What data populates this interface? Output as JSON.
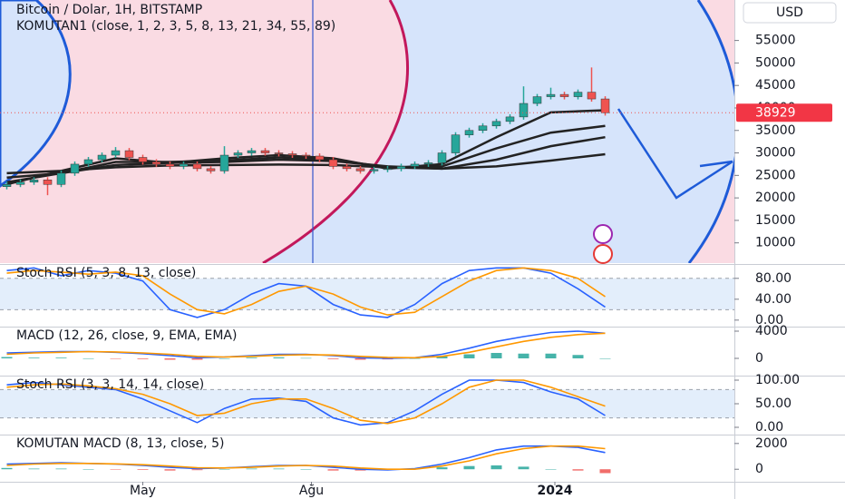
{
  "chart_data": [
    {
      "type": "candlestick",
      "title": "Bitcoin / Dolar, 1H, BITSTAMP",
      "subtitle": "KOMUTAN1 (close, 1, 2, 3, 5, 8, 13, 21, 34, 55, 89)",
      "currency": "USD",
      "last_price": 38929,
      "up_color": "#26a69a",
      "down_color": "#ef5350",
      "x": [
        0,
        1,
        2,
        3,
        4,
        5,
        6,
        7,
        8,
        9,
        10,
        11,
        12,
        13,
        14,
        15,
        16,
        17,
        18,
        19,
        20,
        21,
        22,
        23,
        24,
        25,
        26,
        27,
        28,
        29,
        30,
        31,
        32,
        33,
        34,
        35,
        36,
        37,
        38,
        39,
        40,
        41,
        42,
        43,
        44
      ],
      "open": [
        22500,
        23000,
        23500,
        24000,
        23000,
        25500,
        27500,
        28500,
        29500,
        30500,
        29000,
        28000,
        27500,
        27000,
        27500,
        26500,
        26000,
        29500,
        30000,
        30500,
        30000,
        29800,
        29500,
        29300,
        28500,
        27000,
        26500,
        26000,
        26300,
        26500,
        27000,
        27500,
        27800,
        30000,
        34000,
        35000,
        36000,
        37000,
        38000,
        41000,
        42500,
        43000,
        42500,
        43500,
        42000
      ],
      "high": [
        23600,
        24100,
        24600,
        24600,
        26100,
        28100,
        29100,
        30100,
        31300,
        31100,
        29600,
        28600,
        28100,
        28100,
        28100,
        27100,
        31500,
        30600,
        31100,
        31100,
        30600,
        30400,
        30100,
        29900,
        29100,
        27600,
        27100,
        26900,
        27100,
        27600,
        28100,
        28400,
        30600,
        34600,
        35600,
        36600,
        37600,
        38600,
        44800,
        43100,
        44500,
        43600,
        44100,
        49000,
        42600
      ],
      "low": [
        21900,
        22400,
        22900,
        20600,
        22400,
        24900,
        26900,
        27900,
        28900,
        28400,
        27400,
        26900,
        26400,
        26400,
        25900,
        25400,
        25400,
        28900,
        29400,
        29400,
        29200,
        28900,
        28700,
        27900,
        26400,
        25900,
        25400,
        25400,
        25700,
        25900,
        26400,
        26900,
        27200,
        29400,
        33400,
        34400,
        35400,
        36400,
        37400,
        40400,
        41900,
        41900,
        41900,
        41400,
        38300
      ],
      "close": [
        23000,
        23500,
        24000,
        23000,
        25500,
        27500,
        28500,
        29500,
        30500,
        29000,
        28000,
        27500,
        27000,
        27500,
        26500,
        26000,
        29500,
        30000,
        30500,
        30000,
        29800,
        29500,
        29300,
        28500,
        27000,
        26500,
        26000,
        26300,
        26500,
        27000,
        27500,
        27800,
        30000,
        34000,
        35000,
        36000,
        37000,
        38000,
        41000,
        42500,
        43000,
        42500,
        43500,
        42000,
        38929
      ],
      "overlays": {
        "x": [
          0,
          4,
          8,
          12,
          16,
          20,
          24,
          28,
          32,
          36,
          40,
          44
        ],
        "series": [
          {
            "color": "#222222",
            "values": [
              25500,
              26000,
              26800,
              27200,
              27300,
              27400,
              27300,
              26800,
              26500,
              27000,
              28300,
              29700
            ]
          },
          {
            "color": "#222222",
            "values": [
              24500,
              25500,
              27300,
              27800,
              28000,
              28500,
              28200,
              27000,
              26500,
              28500,
              31500,
              33500
            ]
          },
          {
            "color": "#222222",
            "values": [
              23500,
              25500,
              28000,
              28000,
              28300,
              29000,
              28500,
              26800,
              27000,
              31000,
              34500,
              36000
            ]
          },
          {
            "color": "#222222",
            "values": [
              23000,
              26000,
              28800,
              27800,
              28800,
              29500,
              28800,
              26500,
              27500,
              33500,
              39000,
              39500
            ]
          }
        ]
      },
      "ylim": [
        5500,
        64000
      ],
      "yticks": [
        10000,
        15000,
        20000,
        25000,
        30000,
        35000,
        40000,
        45000,
        50000,
        55000
      ],
      "xlim": [
        -0.5,
        53.5
      ],
      "xticks": [
        {
          "value": 10,
          "label": "May"
        },
        {
          "value": 22.4,
          "label": "Ağu"
        },
        {
          "value": 40.3,
          "label": "2024"
        }
      ]
    },
    {
      "type": "line",
      "title": "Stoch RSI (5, 3, 8, 13, close)",
      "x": [
        0,
        2,
        4,
        6,
        8,
        10,
        12,
        14,
        16,
        18,
        20,
        22,
        24,
        26,
        28,
        30,
        32,
        34,
        36,
        38,
        40,
        42,
        44
      ],
      "series": [
        {
          "color": "#2962ff",
          "values": [
            95,
            100,
            85,
            95,
            90,
            75,
            20,
            5,
            20,
            50,
            70,
            65,
            30,
            10,
            5,
            30,
            70,
            95,
            100,
            100,
            90,
            60,
            25
          ]
        },
        {
          "color": "#ff9800",
          "values": [
            90,
            95,
            92,
            88,
            92,
            85,
            50,
            20,
            12,
            30,
            55,
            65,
            50,
            25,
            10,
            15,
            45,
            75,
            95,
            100,
            95,
            80,
            45
          ]
        }
      ],
      "band": [
        20,
        80
      ],
      "ylim": [
        -9,
        104
      ],
      "yticks": [
        {
          "value": 0,
          "label": "0.00"
        },
        {
          "value": 40,
          "label": "40.00"
        },
        {
          "value": 80,
          "label": "80.00"
        }
      ]
    },
    {
      "type": "line",
      "title": "MACD (12, 26, close, 9, EMA, EMA)",
      "x": [
        0,
        2,
        4,
        6,
        8,
        10,
        12,
        14,
        16,
        18,
        20,
        22,
        24,
        26,
        28,
        30,
        32,
        34,
        36,
        38,
        40,
        42,
        44
      ],
      "series": [
        {
          "color": "#2962ff",
          "values": [
            800,
            900,
            1000,
            1000,
            900,
            700,
            400,
            100,
            200,
            400,
            600,
            600,
            400,
            100,
            0,
            100,
            600,
            1500,
            2500,
            3200,
            3800,
            4000,
            3700
          ]
        },
        {
          "color": "#ff9800",
          "values": [
            600,
            800,
            900,
            1000,
            950,
            800,
            600,
            300,
            200,
            300,
            450,
            550,
            500,
            300,
            150,
            100,
            300,
            900,
            1700,
            2500,
            3100,
            3500,
            3700
          ]
        }
      ],
      "histogram": {
        "up_color": "#26a69a",
        "down_color": "#ef5350",
        "values": [
          200,
          100,
          100,
          0,
          -50,
          -100,
          -200,
          -200,
          0,
          100,
          150,
          50,
          -100,
          -200,
          -150,
          0,
          300,
          600,
          800,
          700,
          700,
          500,
          0
        ]
      },
      "ylim": [
        -2400,
        4400
      ],
      "yticks": [
        0,
        4000
      ]
    },
    {
      "type": "line",
      "title": "Stoch RSI (3, 3, 14, 14, close)",
      "x": [
        0,
        2,
        4,
        6,
        8,
        10,
        12,
        14,
        16,
        18,
        20,
        22,
        24,
        26,
        28,
        30,
        32,
        34,
        36,
        38,
        40,
        42,
        44
      ],
      "series": [
        {
          "color": "#2962ff",
          "values": [
            90,
            95,
            90,
            85,
            80,
            60,
            35,
            10,
            40,
            60,
            62,
            55,
            20,
            5,
            10,
            35,
            70,
            100,
            100,
            95,
            75,
            60,
            25
          ]
        },
        {
          "color": "#ff9800",
          "values": [
            85,
            90,
            92,
            88,
            82,
            70,
            50,
            25,
            30,
            50,
            60,
            60,
            40,
            15,
            8,
            20,
            50,
            85,
            100,
            100,
            85,
            65,
            45
          ]
        }
      ],
      "band": [
        20,
        80
      ],
      "ylim": [
        -13.5,
        105.8
      ],
      "yticks": [
        {
          "value": 0,
          "label": "0.00"
        },
        {
          "value": 50,
          "label": "50.00"
        },
        {
          "value": 100,
          "label": "100.00"
        }
      ]
    },
    {
      "type": "line",
      "title": "KOMUTAN MACD (8, 13, close, 5)",
      "x": [
        0,
        2,
        4,
        6,
        8,
        10,
        12,
        14,
        16,
        18,
        20,
        22,
        24,
        26,
        28,
        30,
        32,
        34,
        36,
        38,
        40,
        42,
        44
      ],
      "series": [
        {
          "color": "#2962ff",
          "values": [
            400,
            450,
            500,
            450,
            400,
            300,
            150,
            50,
            100,
            200,
            300,
            300,
            150,
            0,
            -50,
            50,
            400,
            900,
            1500,
            1800,
            1800,
            1700,
            1300
          ]
        },
        {
          "color": "#ff9800",
          "values": [
            300,
            400,
            450,
            450,
            420,
            350,
            250,
            120,
            100,
            150,
            250,
            300,
            250,
            100,
            0,
            0,
            250,
            650,
            1200,
            1600,
            1800,
            1800,
            1600
          ]
        }
      ],
      "histogram": {
        "up_color": "#26a69a",
        "down_color": "#ef5350",
        "values": [
          100,
          50,
          50,
          0,
          -20,
          -50,
          -100,
          -70,
          0,
          50,
          50,
          0,
          -100,
          -100,
          -50,
          50,
          150,
          250,
          300,
          200,
          0,
          -100,
          -300
        ]
      },
      "ylim": [
        -900,
        2550
      ],
      "yticks": [
        0,
        2000
      ]
    }
  ]
}
